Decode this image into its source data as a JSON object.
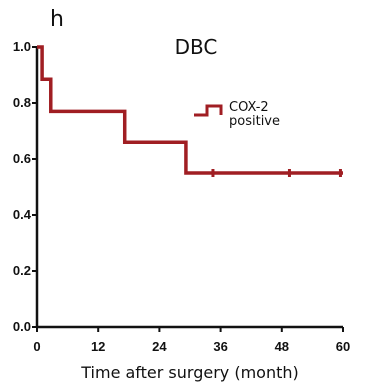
{
  "panel_letter": "h",
  "colors": {
    "series": "#a01e23",
    "axis": "#111111"
  },
  "chart_data": {
    "type": "line",
    "step": true,
    "title": "DBC",
    "xlabel": "Time after surgery (month)",
    "ylabel": "",
    "xlim": [
      0,
      60
    ],
    "ylim": [
      0,
      1.0
    ],
    "xticks": [
      0,
      12,
      24,
      36,
      48,
      60
    ],
    "xtick_labels": [
      "0",
      "12",
      "24",
      "36",
      "48",
      "60"
    ],
    "yticks": [
      0,
      0.2,
      0.4,
      0.6,
      0.8,
      1.0
    ],
    "ytick_labels": [
      "0.0",
      "0.2",
      "0.4",
      "0.6",
      "0.8",
      "1.0"
    ],
    "grid": false,
    "legend_position": "top-right",
    "series": [
      {
        "name": "COX-2 positive",
        "x": [
          0,
          1,
          2.7,
          17.2,
          29.2,
          60
        ],
        "y": [
          1.0,
          0.885,
          0.77,
          0.66,
          0.55,
          0.55
        ],
        "censored": [
          {
            "x": 34.5,
            "y": 0.55
          },
          {
            "x": 49.5,
            "y": 0.55
          },
          {
            "x": 59.5,
            "y": 0.55
          }
        ]
      }
    ]
  }
}
